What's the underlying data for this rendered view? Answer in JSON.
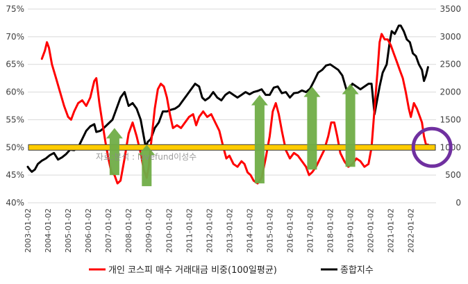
{
  "chart_data": {
    "type": "line",
    "title": "",
    "x_tick_labels": [
      "2003-01-02",
      "2004-01-02",
      "2005-01-02",
      "2006-01-02",
      "2007-01-02",
      "2008-01-02",
      "2009-01-02",
      "2010-01-02",
      "2011-01-02",
      "2012-01-02",
      "2013-01-02",
      "2014-01-02",
      "2015-01-02",
      "2016-01-02",
      "2017-01-02",
      "2018-01-02",
      "2019-01-02",
      "2020-01-02",
      "2021-01-02",
      "2022-01-02"
    ],
    "y_left": {
      "min": 40,
      "max": 75,
      "ticks": [
        40,
        45,
        50,
        55,
        60,
        65,
        70,
        75
      ],
      "tick_labels": [
        "40%",
        "45%",
        "50%",
        "55%",
        "60%",
        "65%",
        "70%",
        "75%"
      ]
    },
    "y_right": {
      "min": 0,
      "max": 3500,
      "ticks": [
        0,
        500,
        1000,
        1500,
        2000,
        2500,
        3000,
        3500
      ],
      "tick_labels": [
        "0",
        "500",
        "1000",
        "1500",
        "2000",
        "2500",
        "3000",
        "3500"
      ]
    },
    "series": [
      {
        "name": "개인 코스피 매수 거래대금 비중(100일평균)",
        "axis": "left",
        "color": "#ff0000",
        "points": [
          [
            2003.7,
            66.0
          ],
          [
            2003.85,
            67.5
          ],
          [
            2003.95,
            69.0
          ],
          [
            2004.05,
            68.0
          ],
          [
            2004.2,
            65.0
          ],
          [
            2004.4,
            62.5
          ],
          [
            2004.6,
            60.0
          ],
          [
            2004.8,
            57.5
          ],
          [
            2005.0,
            55.5
          ],
          [
            2005.15,
            55.0
          ],
          [
            2005.3,
            56.5
          ],
          [
            2005.5,
            58.0
          ],
          [
            2005.7,
            58.5
          ],
          [
            2005.9,
            57.5
          ],
          [
            2006.1,
            59.0
          ],
          [
            2006.3,
            62.0
          ],
          [
            2006.4,
            62.5
          ],
          [
            2006.55,
            58.0
          ],
          [
            2006.7,
            54.5
          ],
          [
            2006.85,
            51.0
          ],
          [
            2007.0,
            48.0
          ],
          [
            2007.15,
            45.5
          ],
          [
            2007.3,
            45.0
          ],
          [
            2007.45,
            43.5
          ],
          [
            2007.6,
            44.0
          ],
          [
            2007.8,
            48.0
          ],
          [
            2008.0,
            52.5
          ],
          [
            2008.2,
            54.5
          ],
          [
            2008.4,
            52.0
          ],
          [
            2008.6,
            49.0
          ],
          [
            2008.75,
            46.0
          ],
          [
            2008.9,
            44.5
          ],
          [
            2009.0,
            46.5
          ],
          [
            2009.15,
            52.0
          ],
          [
            2009.3,
            57.0
          ],
          [
            2009.45,
            60.5
          ],
          [
            2009.6,
            61.5
          ],
          [
            2009.75,
            61.0
          ],
          [
            2009.9,
            59.0
          ],
          [
            2010.05,
            56.0
          ],
          [
            2010.2,
            53.5
          ],
          [
            2010.4,
            54.0
          ],
          [
            2010.6,
            53.5
          ],
          [
            2010.8,
            54.5
          ],
          [
            2011.0,
            55.5
          ],
          [
            2011.2,
            56.0
          ],
          [
            2011.35,
            54.0
          ],
          [
            2011.5,
            55.5
          ],
          [
            2011.7,
            56.5
          ],
          [
            2011.9,
            55.5
          ],
          [
            2012.1,
            56.0
          ],
          [
            2012.3,
            54.5
          ],
          [
            2012.5,
            53.0
          ],
          [
            2012.7,
            50.0
          ],
          [
            2012.85,
            48.0
          ],
          [
            2013.0,
            48.5
          ],
          [
            2013.2,
            47.0
          ],
          [
            2013.4,
            46.5
          ],
          [
            2013.6,
            47.5
          ],
          [
            2013.75,
            47.0
          ],
          [
            2013.9,
            45.5
          ],
          [
            2014.05,
            45.0
          ],
          [
            2014.2,
            44.0
          ],
          [
            2014.4,
            43.5
          ],
          [
            2014.6,
            44.5
          ],
          [
            2014.8,
            48.0
          ],
          [
            2015.0,
            52.0
          ],
          [
            2015.15,
            56.5
          ],
          [
            2015.3,
            58.0
          ],
          [
            2015.45,
            56.0
          ],
          [
            2015.6,
            53.0
          ],
          [
            2015.8,
            49.5
          ],
          [
            2016.0,
            48.0
          ],
          [
            2016.2,
            49.0
          ],
          [
            2016.4,
            48.5
          ],
          [
            2016.6,
            47.5
          ],
          [
            2016.8,
            46.5
          ],
          [
            2016.95,
            45.0
          ],
          [
            2017.1,
            45.5
          ],
          [
            2017.3,
            46.5
          ],
          [
            2017.5,
            48.0
          ],
          [
            2017.7,
            49.5
          ],
          [
            2017.9,
            52.0
          ],
          [
            2018.05,
            54.5
          ],
          [
            2018.2,
            54.5
          ],
          [
            2018.35,
            52.0
          ],
          [
            2018.5,
            49.0
          ],
          [
            2018.7,
            47.5
          ],
          [
            2018.9,
            46.5
          ],
          [
            2019.1,
            47.0
          ],
          [
            2019.3,
            48.0
          ],
          [
            2019.5,
            47.5
          ],
          [
            2019.7,
            46.5
          ],
          [
            2019.9,
            47.0
          ],
          [
            2020.05,
            50.0
          ],
          [
            2020.2,
            57.0
          ],
          [
            2020.35,
            64.0
          ],
          [
            2020.45,
            69.0
          ],
          [
            2020.55,
            70.5
          ],
          [
            2020.7,
            69.5
          ],
          [
            2020.85,
            69.5
          ],
          [
            2021.0,
            68.5
          ],
          [
            2021.15,
            67.0
          ],
          [
            2021.3,
            65.5
          ],
          [
            2021.45,
            64.0
          ],
          [
            2021.6,
            62.5
          ],
          [
            2021.75,
            60.0
          ],
          [
            2021.9,
            57.0
          ],
          [
            2022.0,
            55.5
          ],
          [
            2022.15,
            58.0
          ],
          [
            2022.3,
            57.0
          ],
          [
            2022.45,
            55.5
          ],
          [
            2022.55,
            54.5
          ],
          [
            2022.65,
            52.0
          ],
          [
            2022.75,
            50.5
          ],
          [
            2022.85,
            50.5
          ]
        ]
      },
      {
        "name": "종합지수",
        "axis": "right",
        "color": "#000000",
        "points": [
          [
            2003.0,
            650
          ],
          [
            2003.1,
            600
          ],
          [
            2003.2,
            560
          ],
          [
            2003.35,
            600
          ],
          [
            2003.5,
            700
          ],
          [
            2003.7,
            760
          ],
          [
            2003.9,
            800
          ],
          [
            2004.1,
            860
          ],
          [
            2004.3,
            900
          ],
          [
            2004.5,
            780
          ],
          [
            2004.7,
            820
          ],
          [
            2004.9,
            880
          ],
          [
            2005.1,
            960
          ],
          [
            2005.3,
            950
          ],
          [
            2005.5,
            1000
          ],
          [
            2005.7,
            1150
          ],
          [
            2005.9,
            1300
          ],
          [
            2006.1,
            1380
          ],
          [
            2006.3,
            1420
          ],
          [
            2006.4,
            1280
          ],
          [
            2006.6,
            1300
          ],
          [
            2006.8,
            1360
          ],
          [
            2007.0,
            1430
          ],
          [
            2007.2,
            1500
          ],
          [
            2007.4,
            1700
          ],
          [
            2007.6,
            1900
          ],
          [
            2007.8,
            2000
          ],
          [
            2008.0,
            1750
          ],
          [
            2008.2,
            1800
          ],
          [
            2008.4,
            1700
          ],
          [
            2008.6,
            1500
          ],
          [
            2008.75,
            1200
          ],
          [
            2008.85,
            1000
          ],
          [
            2008.95,
            1100
          ],
          [
            2009.1,
            1150
          ],
          [
            2009.3,
            1350
          ],
          [
            2009.5,
            1450
          ],
          [
            2009.7,
            1650
          ],
          [
            2009.9,
            1650
          ],
          [
            2010.1,
            1680
          ],
          [
            2010.3,
            1700
          ],
          [
            2010.5,
            1750
          ],
          [
            2010.7,
            1850
          ],
          [
            2010.9,
            1950
          ],
          [
            2011.1,
            2050
          ],
          [
            2011.3,
            2150
          ],
          [
            2011.5,
            2100
          ],
          [
            2011.65,
            1900
          ],
          [
            2011.8,
            1850
          ],
          [
            2012.0,
            1900
          ],
          [
            2012.2,
            2000
          ],
          [
            2012.4,
            1900
          ],
          [
            2012.6,
            1850
          ],
          [
            2012.8,
            1950
          ],
          [
            2013.0,
            2000
          ],
          [
            2013.2,
            1950
          ],
          [
            2013.4,
            1900
          ],
          [
            2013.6,
            1950
          ],
          [
            2013.8,
            2000
          ],
          [
            2014.0,
            1960
          ],
          [
            2014.2,
            2000
          ],
          [
            2014.4,
            2020
          ],
          [
            2014.6,
            2050
          ],
          [
            2014.8,
            1950
          ],
          [
            2015.0,
            1950
          ],
          [
            2015.2,
            2080
          ],
          [
            2015.4,
            2100
          ],
          [
            2015.6,
            1980
          ],
          [
            2015.8,
            2000
          ],
          [
            2016.0,
            1900
          ],
          [
            2016.2,
            1980
          ],
          [
            2016.4,
            1990
          ],
          [
            2016.6,
            2030
          ],
          [
            2016.8,
            2000
          ],
          [
            2017.0,
            2060
          ],
          [
            2017.2,
            2200
          ],
          [
            2017.4,
            2350
          ],
          [
            2017.6,
            2400
          ],
          [
            2017.8,
            2480
          ],
          [
            2018.0,
            2500
          ],
          [
            2018.2,
            2450
          ],
          [
            2018.4,
            2400
          ],
          [
            2018.6,
            2300
          ],
          [
            2018.8,
            2050
          ],
          [
            2018.95,
            2050
          ],
          [
            2019.1,
            2150
          ],
          [
            2019.3,
            2100
          ],
          [
            2019.5,
            2050
          ],
          [
            2019.7,
            2100
          ],
          [
            2019.9,
            2150
          ],
          [
            2020.05,
            2150
          ],
          [
            2020.2,
            1600
          ],
          [
            2020.3,
            1800
          ],
          [
            2020.45,
            2100
          ],
          [
            2020.6,
            2350
          ],
          [
            2020.8,
            2500
          ],
          [
            2020.95,
            2900
          ],
          [
            2021.05,
            3100
          ],
          [
            2021.2,
            3050
          ],
          [
            2021.4,
            3200
          ],
          [
            2021.5,
            3200
          ],
          [
            2021.65,
            3100
          ],
          [
            2021.8,
            2950
          ],
          [
            2021.95,
            2900
          ],
          [
            2022.1,
            2700
          ],
          [
            2022.25,
            2650
          ],
          [
            2022.4,
            2500
          ],
          [
            2022.55,
            2400
          ],
          [
            2022.65,
            2200
          ],
          [
            2022.75,
            2300
          ],
          [
            2022.85,
            2450
          ]
        ]
      }
    ],
    "reference_band": {
      "value": 50,
      "axis": "left",
      "color": "#ffcc00"
    },
    "arrows": [
      {
        "x": 2007.3,
        "from": 45,
        "to": 53.5,
        "color": "#70ad47"
      },
      {
        "x": 2008.9,
        "from": 43,
        "to": 50.5,
        "color": "#70ad47"
      },
      {
        "x": 2014.5,
        "from": 43.5,
        "to": 59.5,
        "color": "#70ad47"
      },
      {
        "x": 2017.1,
        "from": 46,
        "to": 61.0,
        "color": "#70ad47"
      },
      {
        "x": 2019.0,
        "from": 46.5,
        "to": 61.5,
        "color": "#70ad47"
      }
    ],
    "highlight_circle": {
      "x": 2023.05,
      "y": 50,
      "color": "#7030a0"
    },
    "watermark": "자료:분석 : lovefund이성수",
    "legend": {
      "position": "bottom"
    }
  }
}
